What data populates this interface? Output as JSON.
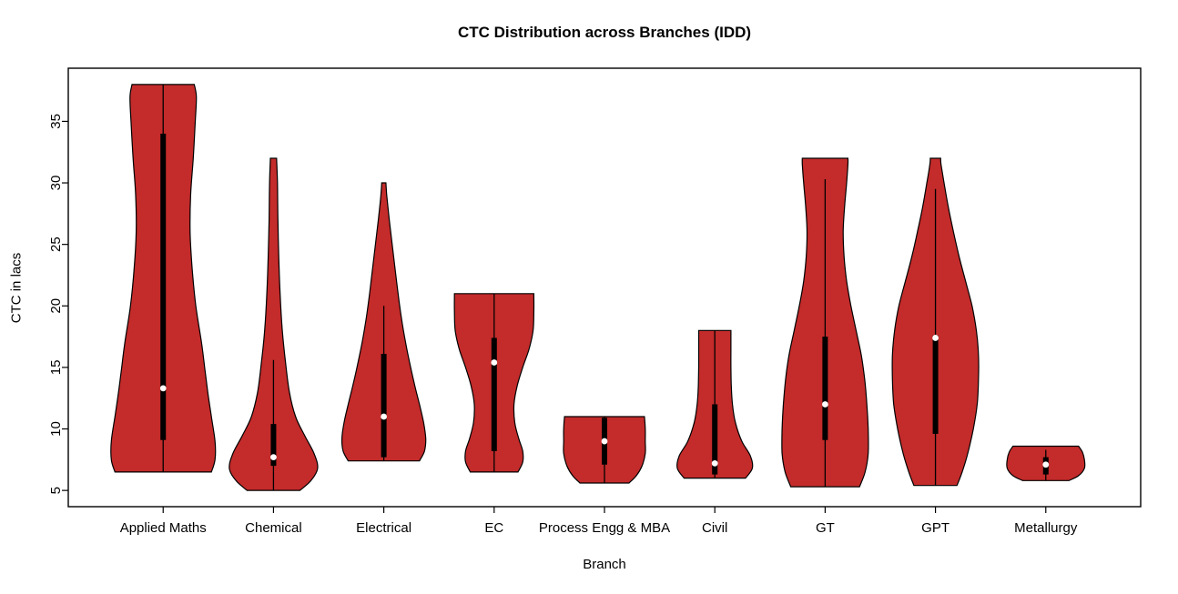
{
  "chart_data": {
    "type": "violin",
    "title": "CTC Distribution across Branches (IDD)",
    "xlabel": "Branch",
    "ylabel": "CTC in lacs",
    "yticks": [
      5,
      10,
      15,
      20,
      25,
      30,
      35
    ],
    "ylim": [
      3.68,
      39.32
    ],
    "categories": [
      "Applied Maths",
      "Chemical",
      "Electrical",
      "EC",
      "Process Engg & MBA",
      "Civil",
      "GT",
      "GPT",
      "Metallurgy"
    ],
    "colors": {
      "fill": "#C42B2B",
      "outline": "#000000",
      "box": "#000000",
      "median_dot": "#FFFFFF",
      "axis": "#000000"
    },
    "violins": [
      {
        "name": "Applied Maths",
        "min": 6.5,
        "max": 38,
        "q1": 9.1,
        "q3": 34,
        "median": 13.3,
        "whisker_low": 6.5,
        "whisker_high": 38,
        "halfwidth": 0.47,
        "shape": [
          [
            6.5,
            0.93
          ],
          [
            7.5,
            1.0
          ],
          [
            9,
            1.0
          ],
          [
            11,
            0.93
          ],
          [
            13,
            0.86
          ],
          [
            15,
            0.8
          ],
          [
            17,
            0.74
          ],
          [
            20,
            0.63
          ],
          [
            23,
            0.56
          ],
          [
            26,
            0.52
          ],
          [
            29,
            0.53
          ],
          [
            32,
            0.58
          ],
          [
            35,
            0.62
          ],
          [
            37,
            0.64
          ],
          [
            38,
            0.6
          ]
        ]
      },
      {
        "name": "Chemical",
        "min": 5,
        "max": 32,
        "q1": 7.0,
        "q3": 10.4,
        "median": 7.7,
        "whisker_low": 5,
        "whisker_high": 15.6,
        "halfwidth": 0.4,
        "shape": [
          [
            5,
            0.6
          ],
          [
            5.8,
            0.85
          ],
          [
            6.8,
            1.0
          ],
          [
            8,
            0.92
          ],
          [
            9.5,
            0.7
          ],
          [
            11,
            0.5
          ],
          [
            13,
            0.36
          ],
          [
            15.5,
            0.27
          ],
          [
            18,
            0.2
          ],
          [
            21,
            0.15
          ],
          [
            24,
            0.12
          ],
          [
            27,
            0.1
          ],
          [
            30,
            0.09
          ],
          [
            32,
            0.07
          ]
        ]
      },
      {
        "name": "Electrical",
        "min": 7.4,
        "max": 30,
        "q1": 7.7,
        "q3": 16.1,
        "median": 11.0,
        "whisker_low": 7.4,
        "whisker_high": 20,
        "halfwidth": 0.38,
        "shape": [
          [
            7.4,
            0.85
          ],
          [
            8.2,
            0.97
          ],
          [
            9.2,
            1.0
          ],
          [
            10.5,
            0.95
          ],
          [
            12,
            0.85
          ],
          [
            13.5,
            0.74
          ],
          [
            15,
            0.64
          ],
          [
            17,
            0.52
          ],
          [
            19,
            0.42
          ],
          [
            21,
            0.34
          ],
          [
            23,
            0.27
          ],
          [
            25,
            0.2
          ],
          [
            27,
            0.13
          ],
          [
            29,
            0.07
          ],
          [
            30,
            0.05
          ]
        ]
      },
      {
        "name": "EC",
        "min": 6.5,
        "max": 21,
        "q1": 8.2,
        "q3": 17.4,
        "median": 15.4,
        "whisker_low": 6.5,
        "whisker_high": 21,
        "halfwidth": 0.36,
        "shape": [
          [
            6.5,
            0.6
          ],
          [
            7.3,
            0.72
          ],
          [
            8.2,
            0.72
          ],
          [
            9.2,
            0.62
          ],
          [
            10.5,
            0.52
          ],
          [
            12,
            0.5
          ],
          [
            13.5,
            0.58
          ],
          [
            15,
            0.72
          ],
          [
            16.5,
            0.88
          ],
          [
            18,
            0.98
          ],
          [
            19.5,
            1.0
          ],
          [
            21,
            1.0
          ]
        ]
      },
      {
        "name": "Process Engg & MBA",
        "min": 5.6,
        "max": 11,
        "q1": 7.1,
        "q3": 10.9,
        "median": 9.0,
        "whisker_low": 5.6,
        "whisker_high": 11,
        "halfwidth": 0.37,
        "shape": [
          [
            5.6,
            0.6
          ],
          [
            6.2,
            0.78
          ],
          [
            7,
            0.92
          ],
          [
            8,
            1.0
          ],
          [
            9,
            1.0
          ],
          [
            10,
            1.0
          ],
          [
            11,
            0.98
          ]
        ]
      },
      {
        "name": "Civil",
        "min": 6,
        "max": 18,
        "q1": 6.3,
        "q3": 12.0,
        "median": 7.2,
        "whisker_low": 6,
        "whisker_high": 18,
        "halfwidth": 0.34,
        "shape": [
          [
            6,
            0.82
          ],
          [
            6.8,
            1.0
          ],
          [
            7.8,
            0.95
          ],
          [
            9,
            0.72
          ],
          [
            10.5,
            0.55
          ],
          [
            12,
            0.47
          ],
          [
            13.5,
            0.44
          ],
          [
            15,
            0.43
          ],
          [
            16.5,
            0.43
          ],
          [
            18,
            0.43
          ]
        ]
      },
      {
        "name": "GT",
        "min": 5.3,
        "max": 32,
        "q1": 9.1,
        "q3": 17.5,
        "median": 12.0,
        "whisker_low": 5.3,
        "whisker_high": 30.3,
        "halfwidth": 0.39,
        "shape": [
          [
            5.3,
            0.8
          ],
          [
            6.5,
            0.93
          ],
          [
            8,
            1.0
          ],
          [
            10,
            1.0
          ],
          [
            12,
            0.97
          ],
          [
            14,
            0.92
          ],
          [
            16,
            0.84
          ],
          [
            18,
            0.72
          ],
          [
            20,
            0.6
          ],
          [
            22,
            0.5
          ],
          [
            24,
            0.44
          ],
          [
            26,
            0.42
          ],
          [
            28,
            0.45
          ],
          [
            30,
            0.5
          ],
          [
            31.5,
            0.53
          ],
          [
            32,
            0.53
          ]
        ]
      },
      {
        "name": "GPT",
        "min": 5.4,
        "max": 32,
        "q1": 9.6,
        "q3": 17.6,
        "median": 17.4,
        "whisker_low": 5.4,
        "whisker_high": 29.5,
        "halfwidth": 0.39,
        "shape": [
          [
            5.4,
            0.5
          ],
          [
            6.5,
            0.62
          ],
          [
            8,
            0.75
          ],
          [
            10,
            0.88
          ],
          [
            12,
            0.97
          ],
          [
            14,
            1.0
          ],
          [
            16,
            1.0
          ],
          [
            18,
            0.95
          ],
          [
            20,
            0.85
          ],
          [
            22,
            0.7
          ],
          [
            24,
            0.55
          ],
          [
            26,
            0.42
          ],
          [
            28,
            0.3
          ],
          [
            30,
            0.2
          ],
          [
            31.5,
            0.13
          ],
          [
            32,
            0.12
          ]
        ]
      },
      {
        "name": "Metallurgy",
        "min": 5.8,
        "max": 8.6,
        "q1": 6.3,
        "q3": 7.7,
        "median": 7.1,
        "whisker_low": 5.8,
        "whisker_high": 8.3,
        "halfwidth": 0.35,
        "shape": [
          [
            5.8,
            0.6
          ],
          [
            6.2,
            0.85
          ],
          [
            6.8,
            1.0
          ],
          [
            7.5,
            1.0
          ],
          [
            8.1,
            0.95
          ],
          [
            8.6,
            0.85
          ]
        ]
      }
    ]
  }
}
